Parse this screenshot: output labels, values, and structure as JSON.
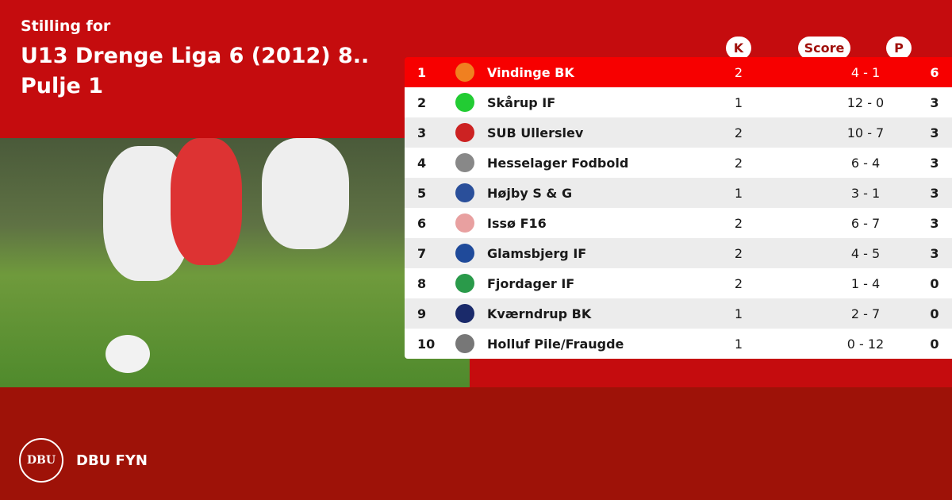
{
  "header": {
    "subtitle": "Stilling for",
    "title": "U13 Drenge Liga 6 (2012) 8..",
    "group": "Pulje 1"
  },
  "columns": {
    "k": "K",
    "score": "Score",
    "p": "P"
  },
  "colors": {
    "top": "#c50c0e",
    "bottom": "#9e1208",
    "highlight": "#f70000"
  },
  "rows": [
    {
      "pos": "1",
      "team": "Vindinge BK",
      "k": "2",
      "score": "4 - 1",
      "p": "6",
      "logo_color": "#f08020",
      "highlight": true
    },
    {
      "pos": "2",
      "team": "Skårup IF",
      "k": "1",
      "score": "12 - 0",
      "p": "3",
      "logo_color": "#22cc33"
    },
    {
      "pos": "3",
      "team": "SUB Ullerslev",
      "k": "2",
      "score": "10 - 7",
      "p": "3",
      "logo_color": "#cc2222"
    },
    {
      "pos": "4",
      "team": "Hesselager Fodbold",
      "k": "2",
      "score": "6 - 4",
      "p": "3",
      "logo_color": "#888888"
    },
    {
      "pos": "5",
      "team": "Højby S & G",
      "k": "1",
      "score": "3 - 1",
      "p": "3",
      "logo_color": "#2a4f9a"
    },
    {
      "pos": "6",
      "team": "Issø F16",
      "k": "2",
      "score": "6 - 7",
      "p": "3",
      "logo_color": "#e8a0a0"
    },
    {
      "pos": "7",
      "team": "Glamsbjerg IF",
      "k": "2",
      "score": "4 - 5",
      "p": "3",
      "logo_color": "#1f4a9a"
    },
    {
      "pos": "8",
      "team": "Fjordager IF",
      "k": "2",
      "score": "1 - 4",
      "p": "0",
      "logo_color": "#2a9a4a"
    },
    {
      "pos": "9",
      "team": "Kværndrup BK",
      "k": "1",
      "score": "2 - 7",
      "p": "0",
      "logo_color": "#1a2a6a"
    },
    {
      "pos": "10",
      "team": "Holluf Pile/Fraugde",
      "k": "1",
      "score": "0 - 12",
      "p": "0",
      "logo_color": "#777777"
    }
  ],
  "footer": {
    "org": "DBU FYN",
    "seal_text": "DBU"
  }
}
